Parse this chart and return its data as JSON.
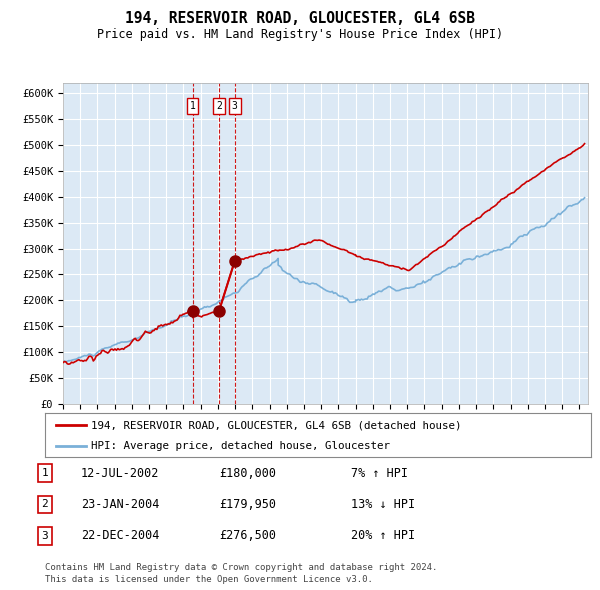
{
  "title": "194, RESERVOIR ROAD, GLOUCESTER, GL4 6SB",
  "subtitle": "Price paid vs. HM Land Registry's House Price Index (HPI)",
  "bg_color": "#dce9f5",
  "hpi_color": "#7ab0d8",
  "price_color": "#cc0000",
  "vline_color": "#cc0000",
  "transaction_dates_num": [
    2002.53,
    2004.07,
    2004.98
  ],
  "transaction_prices": [
    180000,
    179950,
    276500
  ],
  "transaction_dates_str": [
    "12-JUL-2002",
    "23-JAN-2004",
    "22-DEC-2004"
  ],
  "transaction_prices_str": [
    "£180,000",
    "£179,950",
    "£276,500"
  ],
  "transaction_hpi_str": [
    "7% ↑ HPI",
    "13% ↓ HPI",
    "20% ↑ HPI"
  ],
  "legend_house_label": "194, RESERVOIR ROAD, GLOUCESTER, GL4 6SB (detached house)",
  "legend_hpi_label": "HPI: Average price, detached house, Gloucester",
  "footer_line1": "Contains HM Land Registry data © Crown copyright and database right 2024.",
  "footer_line2": "This data is licensed under the Open Government Licence v3.0.",
  "ylim": [
    0,
    620000
  ],
  "xlim_start": 1995.0,
  "xlim_end": 2025.5,
  "yticks": [
    0,
    50000,
    100000,
    150000,
    200000,
    250000,
    300000,
    350000,
    400000,
    450000,
    500000,
    550000,
    600000
  ]
}
